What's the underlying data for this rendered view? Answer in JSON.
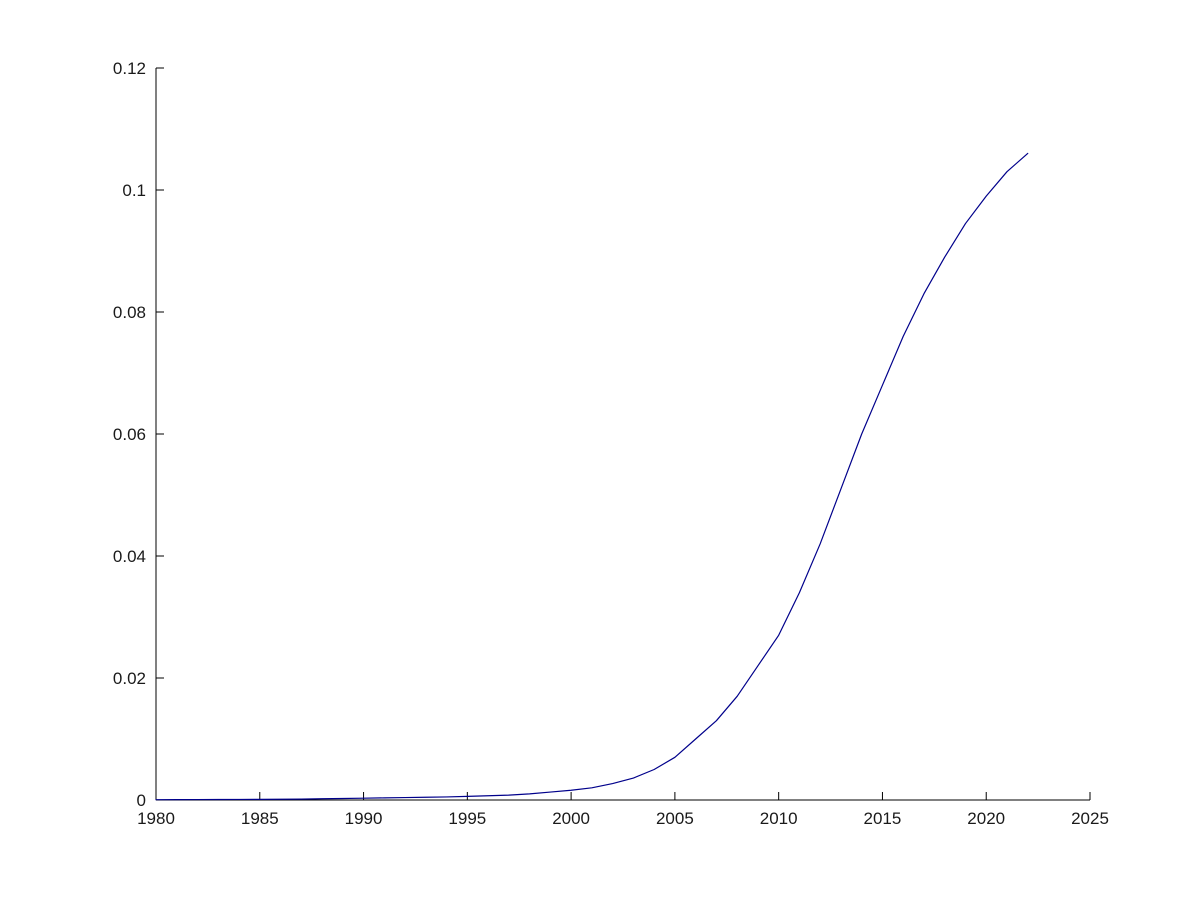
{
  "chart_data": {
    "type": "line",
    "title": "",
    "xlabel": "",
    "ylabel": "",
    "xlim": [
      1980,
      2025
    ],
    "ylim": [
      0,
      0.12
    ],
    "xticks": [
      1980,
      1985,
      1990,
      1995,
      2000,
      2005,
      2010,
      2015,
      2020,
      2025
    ],
    "yticks": [
      0,
      0.02,
      0.04,
      0.06,
      0.08,
      0.1,
      0.12
    ],
    "ytick_labels": [
      "0",
      "0.02",
      "0.04",
      "0.06",
      "0.08",
      "0.1",
      "0.12"
    ],
    "grid": false,
    "legend": "none",
    "line_color": "#00008B",
    "series": [
      {
        "name": "series-1",
        "x": [
          1980,
          1981,
          1982,
          1983,
          1984,
          1985,
          1986,
          1987,
          1988,
          1989,
          1990,
          1991,
          1992,
          1993,
          1994,
          1995,
          1996,
          1997,
          1998,
          1999,
          2000,
          2001,
          2002,
          2003,
          2004,
          2005,
          2006,
          2007,
          2008,
          2009,
          2010,
          2011,
          2012,
          2013,
          2014,
          2015,
          2016,
          2017,
          2018,
          2019,
          2020,
          2021,
          2022
        ],
        "y": [
          5e-05,
          6e-05,
          7e-05,
          8e-05,
          9e-05,
          0.0001,
          0.00012,
          0.00015,
          0.0002,
          0.00025,
          0.0003,
          0.00035,
          0.0004,
          0.00045,
          0.0005,
          0.0006,
          0.0007,
          0.0008,
          0.001,
          0.0013,
          0.0016,
          0.002,
          0.0027,
          0.0036,
          0.005,
          0.007,
          0.01,
          0.013,
          0.017,
          0.022,
          0.027,
          0.034,
          0.042,
          0.051,
          0.06,
          0.068,
          0.076,
          0.083,
          0.089,
          0.0945,
          0.099,
          0.103,
          0.106
        ]
      }
    ],
    "layout": {
      "plot_left": 156,
      "plot_right": 1090,
      "plot_top": 68,
      "plot_bottom": 800,
      "tick_len": 8,
      "font_size": 17,
      "x_label_offset": 24,
      "y_label_offset": 10,
      "axis_color": "#000000",
      "text_color": "#1a1a1a",
      "background": "#ffffff"
    }
  }
}
